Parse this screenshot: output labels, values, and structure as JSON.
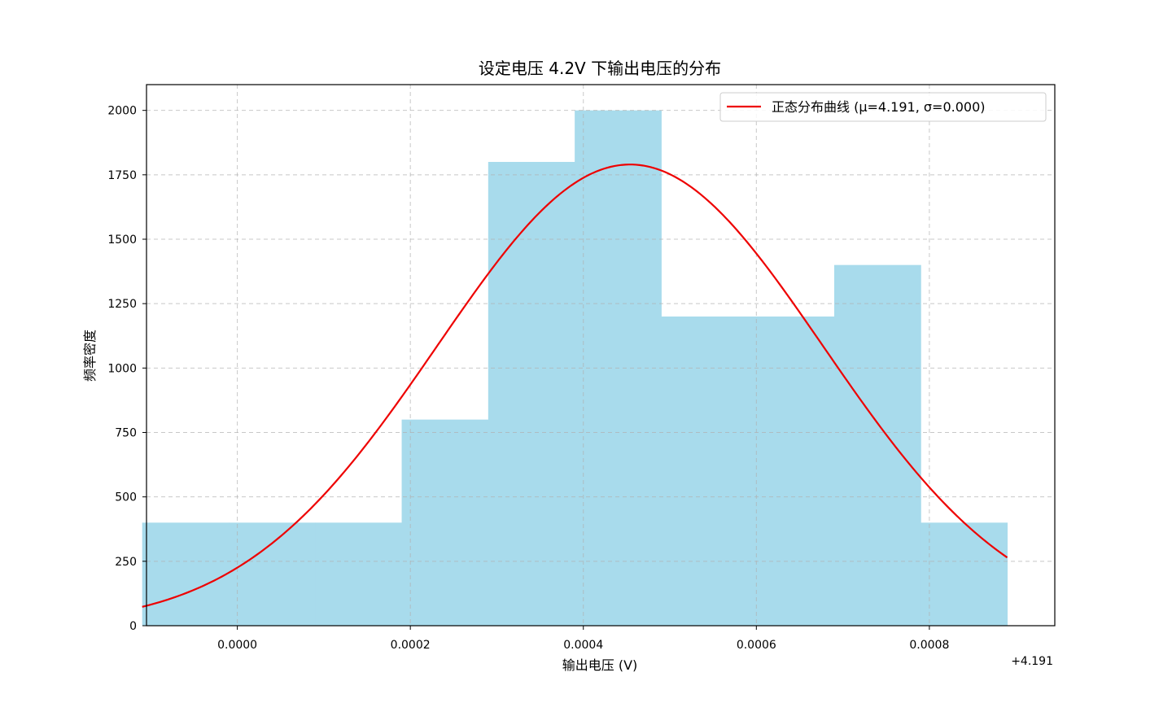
{
  "chart_data": {
    "type": "bar",
    "title": "设定电压 4.2V 下输出电压的分布",
    "xlabel": "输出电压 (V)",
    "ylabel": "频率密度",
    "x_offset_label": "+4.191",
    "xlim": [
      -0.000105,
      0.000945
    ],
    "ylim": [
      0,
      2100
    ],
    "x_ticks": [
      0.0,
      0.0002,
      0.0004,
      0.0006,
      0.0008
    ],
    "x_tick_labels": [
      "0.0000",
      "0.0002",
      "0.0004",
      "0.0006",
      "0.0008"
    ],
    "y_ticks": [
      0,
      250,
      500,
      750,
      1000,
      1250,
      1500,
      1750,
      2000
    ],
    "y_tick_labels": [
      "0",
      "250",
      "500",
      "750",
      "1000",
      "1250",
      "1500",
      "1750",
      "2000"
    ],
    "grid": true,
    "legend_position": "top-right",
    "histogram": {
      "color": "#a8dbec",
      "bins": [
        {
          "x0": -0.00011,
          "x1": -1e-05,
          "density": 400
        },
        {
          "x0": -1e-05,
          "x1": 9e-05,
          "density": 400
        },
        {
          "x0": 9e-05,
          "x1": 0.00019,
          "density": 400
        },
        {
          "x0": 0.00019,
          "x1": 0.00029,
          "density": 800
        },
        {
          "x0": 0.00029,
          "x1": 0.00039,
          "density": 1800
        },
        {
          "x0": 0.00039,
          "x1": 0.00049,
          "density": 2000
        },
        {
          "x0": 0.00049,
          "x1": 0.00059,
          "density": 1200
        },
        {
          "x0": 0.00059,
          "x1": 0.00069,
          "density": 1200
        },
        {
          "x0": 0.00069,
          "x1": 0.00079,
          "density": 1400
        },
        {
          "x0": 0.00079,
          "x1": 0.00089,
          "density": 400
        }
      ]
    },
    "series": [
      {
        "name": "正态分布曲线 (μ=4.191, σ=0.000)",
        "type": "line",
        "color": "#ee0000",
        "mean_offset": 0.000454,
        "sigma": 0.000223,
        "peak_density": 1790,
        "x_range": [
          -0.00011,
          0.00089
        ]
      }
    ]
  }
}
